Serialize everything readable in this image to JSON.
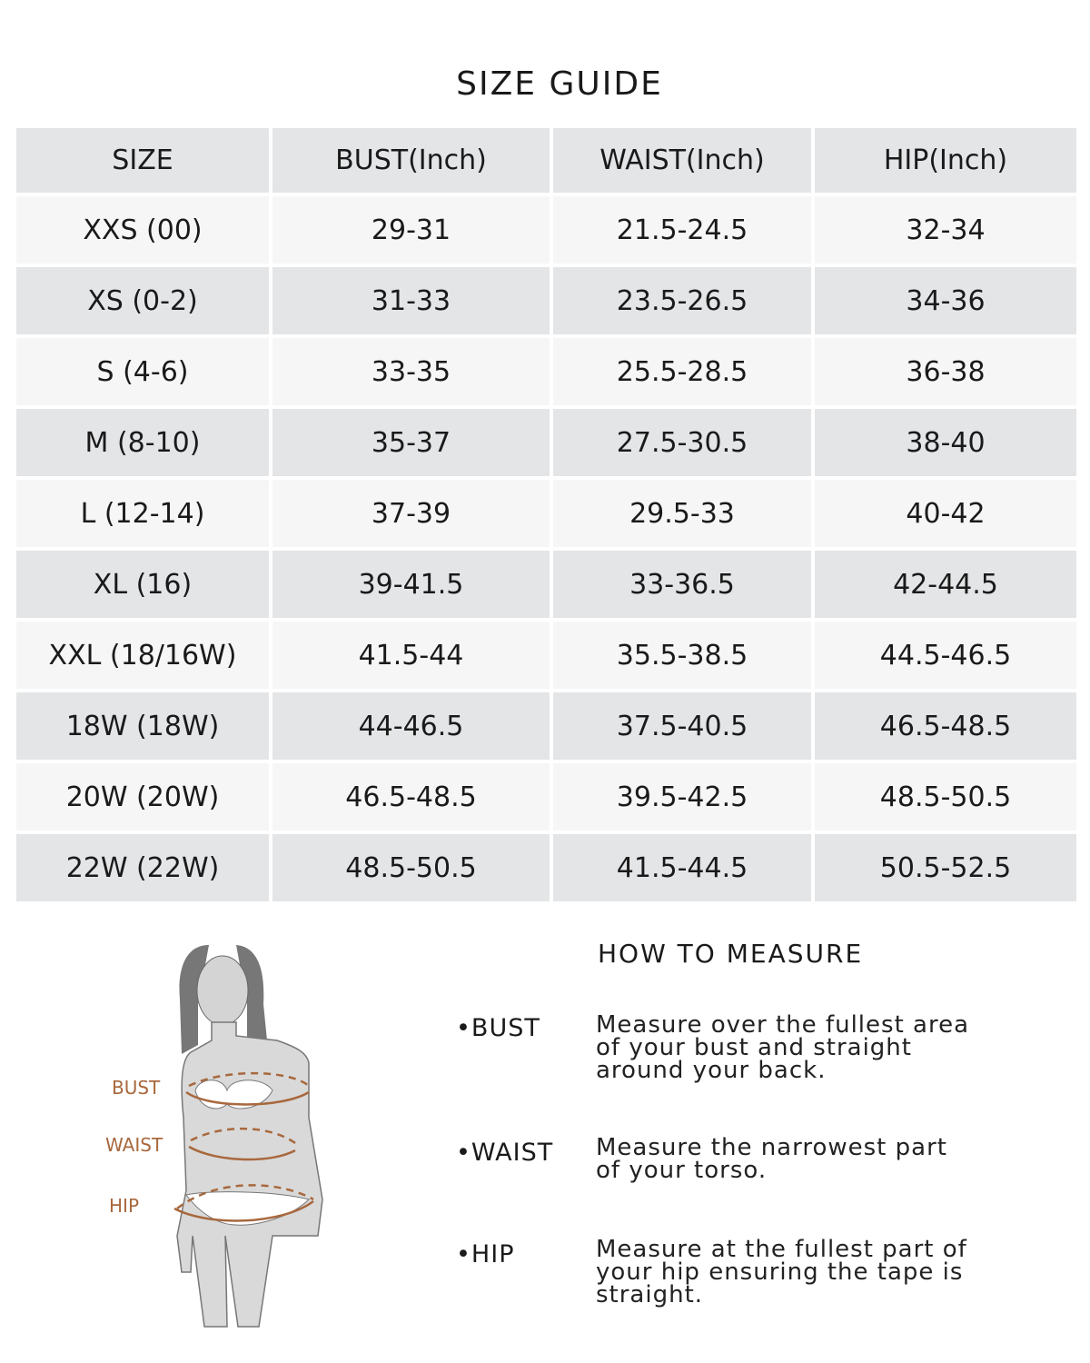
{
  "title": "SIZE GUIDE",
  "table": {
    "headers": [
      "SIZE",
      "BUST(Inch)",
      "WAIST(Inch)",
      "HIP(Inch)"
    ],
    "rows": [
      [
        "XXS (00)",
        "29-31",
        "21.5-24.5",
        "32-34"
      ],
      [
        "XS (0-2)",
        "31-33",
        "23.5-26.5",
        "34-36"
      ],
      [
        "S (4-6)",
        "33-35",
        "25.5-28.5",
        "36-38"
      ],
      [
        "M (8-10)",
        "35-37",
        "27.5-30.5",
        "38-40"
      ],
      [
        "L (12-14)",
        "37-39",
        "29.5-33",
        "40-42"
      ],
      [
        "XL (16)",
        "39-41.5",
        "33-36.5",
        "42-44.5"
      ],
      [
        "XXL (18/16W)",
        "41.5-44",
        "35.5-38.5",
        "44.5-46.5"
      ],
      [
        "18W (18W)",
        "44-46.5",
        "37.5-40.5",
        "46.5-48.5"
      ],
      [
        "20W (20W)",
        "46.5-48.5",
        "39.5-42.5",
        "48.5-50.5"
      ],
      [
        "22W (22W)",
        "48.5-50.5",
        "41.5-44.5",
        "50.5-52.5"
      ]
    ]
  },
  "figure": {
    "labels": {
      "bust": "BUST",
      "waist": "WAIST",
      "hip": "HIP"
    },
    "accent_color": "#a8683d"
  },
  "how_to_measure": {
    "title": "HOW TO MEASURE",
    "items": [
      {
        "label": "•BUST",
        "text": "Measure over the fullest area of your bust and straight around your back."
      },
      {
        "label": "•WAIST",
        "text": "Measure the narrowest part of your torso."
      },
      {
        "label": "•HIP",
        "text": "Measure at the fullest part of your hip ensuring the tape is straight."
      }
    ]
  }
}
